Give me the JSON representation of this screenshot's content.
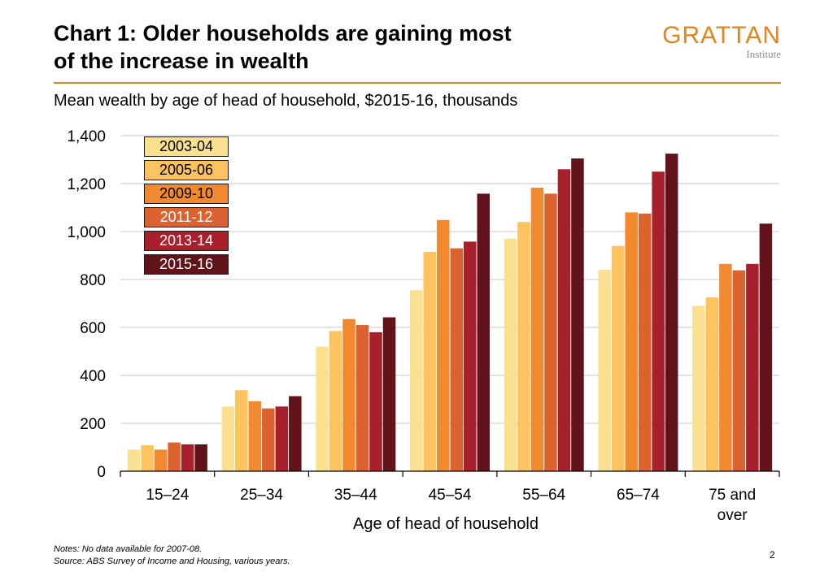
{
  "header": {
    "title_line1": "Chart 1: Older households are gaining most",
    "title_line2": "of the increase in wealth",
    "subtitle": "Mean wealth by age of head of household, $2015-16, thousands",
    "logo_main": "GRATTAN",
    "logo_sub": "Institute"
  },
  "footer": {
    "notes": "Notes: No data available for 2007-08.",
    "source": "Source: ABS Survey of Income and Housing, various years.",
    "page_number": "2"
  },
  "colors": {
    "accent": "#e2851f",
    "series": [
      "#fbe08f",
      "#fcc35f",
      "#f1892f",
      "#dc6230",
      "#a8202c",
      "#621219"
    ],
    "legend_text": [
      "#000000",
      "#000000",
      "#000000",
      "#ffffff",
      "#ffffff",
      "#ffffff"
    ]
  },
  "chart_data": {
    "type": "bar",
    "title": "Chart 1: Older households are gaining most of the increase in wealth",
    "xlabel": "Age of head of household",
    "ylabel": "",
    "ylim": [
      0,
      1400
    ],
    "yticks": [
      0,
      200,
      400,
      600,
      800,
      1000,
      1200,
      1400
    ],
    "ytick_labels": [
      "0",
      "200",
      "400",
      "600",
      "800",
      "1,000",
      "1,200",
      "1,400"
    ],
    "grid": true,
    "legend_position": "top-left",
    "categories": [
      [
        "15–24"
      ],
      [
        "25–34"
      ],
      [
        "35–44"
      ],
      [
        "45–54"
      ],
      [
        "55–64"
      ],
      [
        "65–74"
      ],
      [
        "75 and",
        "over"
      ]
    ],
    "series": [
      {
        "name": "2003-04",
        "values": [
          90,
          270,
          520,
          755,
          970,
          840,
          690
        ]
      },
      {
        "name": "2005-06",
        "values": [
          108,
          338,
          585,
          915,
          1040,
          940,
          725
        ]
      },
      {
        "name": "2009-10",
        "values": [
          90,
          292,
          635,
          1048,
          1183,
          1080,
          865
        ]
      },
      {
        "name": "2011-12",
        "values": [
          120,
          262,
          610,
          930,
          1158,
          1075,
          838
        ]
      },
      {
        "name": "2013-14",
        "values": [
          112,
          270,
          580,
          958,
          1260,
          1250,
          865
        ]
      },
      {
        "name": "2015-16",
        "values": [
          112,
          313,
          642,
          1158,
          1305,
          1325,
          1033
        ]
      }
    ]
  }
}
